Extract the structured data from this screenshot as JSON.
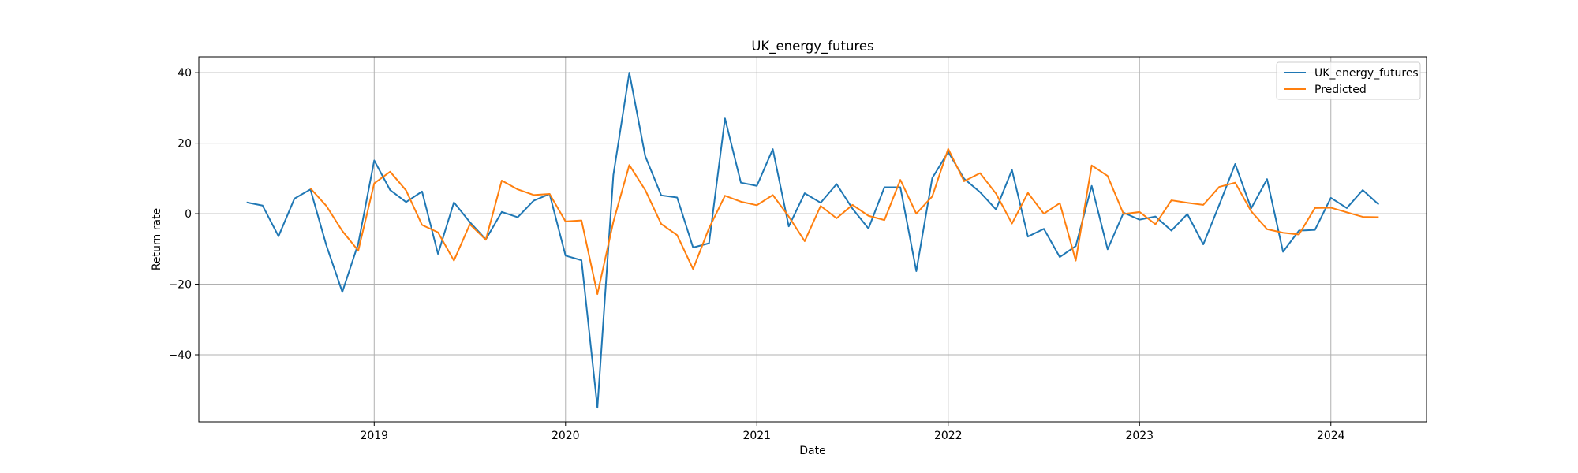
{
  "chart_data": {
    "type": "line",
    "title": "UK_energy_futures",
    "xlabel": "Date",
    "ylabel": "Return rate",
    "x_ticks": [
      "2019",
      "2020",
      "2021",
      "2022",
      "2023",
      "2024"
    ],
    "y_ticks": [
      "40",
      "20",
      "0",
      "−20",
      "−40"
    ],
    "y_tick_values": [
      40,
      20,
      0,
      -20,
      -40
    ],
    "ylim": [
      -59,
      44.5
    ],
    "xlim": [
      "2018-02-01",
      "2024-07-01"
    ],
    "grid": true,
    "legend_position": "top-right",
    "x": [
      "2018-05",
      "2018-06",
      "2018-07",
      "2018-08",
      "2018-09",
      "2018-10",
      "2018-11",
      "2018-12",
      "2019-01",
      "2019-02",
      "2019-03",
      "2019-04",
      "2019-05",
      "2019-06",
      "2019-07",
      "2019-08",
      "2019-09",
      "2019-10",
      "2019-11",
      "2019-12",
      "2020-01",
      "2020-02",
      "2020-03",
      "2020-04",
      "2020-05",
      "2020-06",
      "2020-07",
      "2020-08",
      "2020-09",
      "2020-10",
      "2020-11",
      "2020-12",
      "2021-01",
      "2021-02",
      "2021-03",
      "2021-04",
      "2021-05",
      "2021-06",
      "2021-07",
      "2021-08",
      "2021-09",
      "2021-10",
      "2021-11",
      "2021-12",
      "2022-01",
      "2022-02",
      "2022-03",
      "2022-04",
      "2022-05",
      "2022-06",
      "2022-07",
      "2022-08",
      "2022-09",
      "2022-10",
      "2022-11",
      "2022-12",
      "2023-01",
      "2023-02",
      "2023-03",
      "2023-04",
      "2023-05",
      "2023-06",
      "2023-07",
      "2023-08",
      "2023-09",
      "2023-10",
      "2023-11",
      "2023-12",
      "2024-01",
      "2024-02",
      "2024-03",
      "2024-04"
    ],
    "series": [
      {
        "name": "UK_energy_futures",
        "color": "#1f77b4",
        "values": [
          3.2,
          2.3,
          -6.4,
          4.3,
          6.9,
          -9.0,
          -22.2,
          -8.5,
          15.1,
          6.7,
          3.3,
          6.3,
          -11.4,
          3.2,
          -2.4,
          -7.3,
          0.5,
          -1.0,
          3.7,
          5.6,
          -11.9,
          -13.2,
          -55.0,
          11.0,
          40.0,
          16.3,
          5.2,
          4.6,
          -9.6,
          -8.4,
          27.0,
          8.8,
          7.9,
          18.3,
          -3.6,
          5.8,
          3.1,
          8.4,
          1.4,
          -4.2,
          7.5,
          7.5,
          -16.3,
          10.1,
          17.5,
          9.9,
          6.1,
          1.2,
          12.4,
          -6.5,
          -4.3,
          -12.3,
          -9.2,
          7.9,
          -10.1,
          0.3,
          -1.7,
          -0.8,
          -4.8,
          -0.1,
          -8.7,
          2.5,
          14.1,
          1.5,
          9.8,
          -10.8,
          -4.8,
          -4.6,
          4.5,
          1.6,
          6.7,
          2.6
        ]
      },
      {
        "name": "Predicted",
        "color": "#ff7f0e",
        "values": [
          null,
          null,
          null,
          null,
          7.2,
          2.2,
          -4.9,
          -10.5,
          8.6,
          11.9,
          6.6,
          -3.2,
          -5.3,
          -13.3,
          -3.0,
          -7.4,
          9.4,
          6.9,
          5.3,
          5.6,
          -2.2,
          -1.9,
          -22.8,
          -2.3,
          13.8,
          6.7,
          -2.9,
          -6.1,
          -15.7,
          -4.1,
          5.1,
          3.4,
          2.4,
          5.3,
          -0.8,
          -7.8,
          2.2,
          -1.3,
          2.5,
          -0.6,
          -1.8,
          9.6,
          0.0,
          4.9,
          18.4,
          9.2,
          11.5,
          5.7,
          -2.8,
          5.9,
          0.0,
          3.0,
          -13.3,
          13.7,
          10.7,
          -0.1,
          0.5,
          -3.0,
          3.8,
          3.1,
          2.5,
          7.6,
          8.8,
          0.7,
          -4.4,
          -5.4,
          -5.9,
          1.6,
          1.7,
          0.4,
          -0.9,
          -1.0
        ]
      }
    ]
  }
}
